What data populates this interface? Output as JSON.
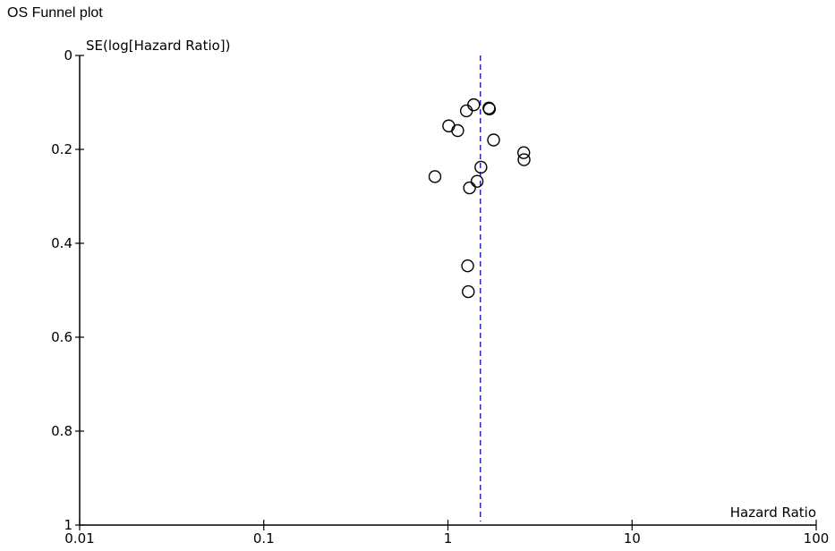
{
  "page_title": "OS Funnel plot",
  "chart_data": {
    "type": "scatter",
    "title": "OS Funnel plot",
    "xlabel": "Hazard Ratio",
    "ylabel": "SE(log[Hazard Ratio])",
    "x_scale": "log",
    "xlim": [
      0.01,
      100
    ],
    "ylim": [
      0,
      1
    ],
    "y_inverted": true,
    "x_ticks": [
      "0.01",
      "0.1",
      "1",
      "10",
      "100"
    ],
    "y_ticks": [
      "0",
      "0.2",
      "0.4",
      "0.6",
      "0.8",
      "1"
    ],
    "pooled_estimate": 1.5,
    "marker": "open-circle",
    "colors": {
      "points": "#000000",
      "pooled_line": "#2222dd",
      "axes": "#000000"
    },
    "points": [
      {
        "x": 1.38,
        "y": 0.105
      },
      {
        "x": 1.67,
        "y": 0.112
      },
      {
        "x": 1.68,
        "y": 0.114
      },
      {
        "x": 1.26,
        "y": 0.118
      },
      {
        "x": 1.01,
        "y": 0.15
      },
      {
        "x": 1.13,
        "y": 0.16
      },
      {
        "x": 1.77,
        "y": 0.18
      },
      {
        "x": 2.58,
        "y": 0.207
      },
      {
        "x": 2.59,
        "y": 0.222
      },
      {
        "x": 1.51,
        "y": 0.238
      },
      {
        "x": 0.85,
        "y": 0.258
      },
      {
        "x": 1.44,
        "y": 0.268
      },
      {
        "x": 1.31,
        "y": 0.282
      },
      {
        "x": 1.28,
        "y": 0.448
      },
      {
        "x": 1.29,
        "y": 0.503
      }
    ]
  }
}
